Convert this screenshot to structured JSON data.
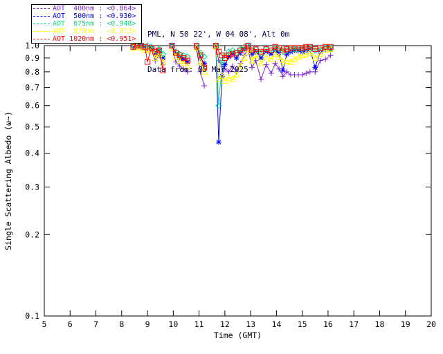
{
  "header": {
    "title_line1": "PML, N 50 22', W 04 08', Alt 0m",
    "title_line2": "Data from: 05 Mar 2025"
  },
  "chart_data": {
    "type": "line",
    "title": "PML, N 50 22', W 04 08', Alt 0m",
    "subtitle": "Data from: 05 Mar 2025",
    "xlabel": "Time (GMT)",
    "ylabel": "Single Scattering Albedo (ω~)",
    "xlim": [
      5,
      20
    ],
    "ylim": [
      0.1,
      1.0
    ],
    "yscale": "log",
    "grid": false,
    "legend_position": "top-left-outside",
    "xticks": [
      5,
      6,
      7,
      8,
      9,
      10,
      11,
      12,
      13,
      14,
      15,
      16,
      17,
      18,
      19,
      20
    ],
    "yticks": [
      0.1,
      0.2,
      0.3,
      0.4,
      0.5,
      0.6,
      0.7,
      0.8,
      0.9,
      1.0
    ],
    "gap_threshold": 0.32,
    "x": [
      8.45,
      8.6,
      8.75,
      8.9,
      9.0,
      9.15,
      9.3,
      9.45,
      9.6,
      9.95,
      10.1,
      10.25,
      10.4,
      10.55,
      10.9,
      11.05,
      11.2,
      11.65,
      11.76,
      11.89,
      12.0,
      12.15,
      12.3,
      12.45,
      12.6,
      12.75,
      12.9,
      13.05,
      13.2,
      13.4,
      13.6,
      13.8,
      13.95,
      14.1,
      14.25,
      14.4,
      14.55,
      14.7,
      14.85,
      15.0,
      15.15,
      15.3,
      15.5,
      15.7,
      15.9,
      16.1
    ],
    "series": [
      {
        "id": "aot-400nm",
        "name": "AOT 400nm",
        "wavelength_nm": 400,
        "mean_ssa": 0.864,
        "legend_label": "AOT  400nm : <0.864>",
        "color": "#7D26CD",
        "marker": "plus",
        "values": [
          0.99,
          1.0,
          0.98,
          0.96,
          0.98,
          0.97,
          0.88,
          0.92,
          0.85,
          0.99,
          0.87,
          0.84,
          0.82,
          0.8,
          0.97,
          0.8,
          0.71,
          0.99,
          0.88,
          0.84,
          0.82,
          0.8,
          0.84,
          0.8,
          0.86,
          0.92,
          0.97,
          0.83,
          0.88,
          0.75,
          0.85,
          0.79,
          0.86,
          0.82,
          0.77,
          0.8,
          0.78,
          0.78,
          0.78,
          0.78,
          0.79,
          0.8,
          0.8,
          0.88,
          0.89,
          0.92
        ]
      },
      {
        "id": "aot-500nm",
        "name": "AOT 500nm",
        "wavelength_nm": 500,
        "mean_ssa": 0.93,
        "legend_label": "AOT  500nm : <0.930>",
        "color": "#0000FF",
        "marker": "asterisk",
        "values": [
          0.99,
          1.0,
          1.0,
          0.98,
          0.99,
          0.98,
          0.93,
          0.96,
          0.9,
          1.0,
          0.93,
          0.9,
          0.89,
          0.87,
          0.99,
          0.9,
          0.86,
          1.0,
          0.44,
          0.77,
          0.85,
          0.91,
          0.93,
          0.9,
          0.94,
          0.97,
          0.99,
          0.93,
          0.95,
          0.9,
          0.95,
          0.93,
          0.96,
          0.94,
          0.81,
          0.93,
          0.95,
          0.96,
          0.96,
          0.95,
          0.96,
          0.97,
          0.83,
          0.95,
          0.97,
          0.97
        ]
      },
      {
        "id": "aot-675nm",
        "name": "AOT 675nm",
        "wavelength_nm": 675,
        "mean_ssa": 0.948,
        "legend_label": "AOT  675nm : <0.948>",
        "color": "#00DC78",
        "marker": "diamond",
        "values": [
          0.99,
          1.0,
          1.0,
          0.99,
          1.0,
          0.99,
          0.96,
          0.97,
          0.93,
          1.0,
          0.95,
          0.93,
          0.92,
          0.91,
          1.0,
          0.94,
          0.91,
          1.0,
          0.6,
          0.88,
          0.92,
          0.95,
          0.96,
          0.94,
          0.97,
          0.99,
          1.0,
          0.96,
          0.97,
          0.94,
          0.97,
          0.96,
          0.98,
          0.97,
          0.95,
          0.96,
          0.97,
          0.97,
          0.97,
          0.97,
          0.98,
          0.98,
          0.96,
          0.97,
          0.98,
          0.98
        ]
      },
      {
        "id": "aot-870nm",
        "name": "AOT 870nm",
        "wavelength_nm": 870,
        "mean_ssa": 0.912,
        "legend_label": "AOT  870nm : <0.912>",
        "color": "#FFFF00",
        "marker": "triangle",
        "values": [
          0.98,
          0.99,
          0.98,
          0.96,
          0.97,
          0.96,
          0.9,
          0.93,
          0.87,
          0.98,
          0.91,
          0.88,
          0.86,
          0.84,
          0.98,
          0.87,
          0.8,
          0.99,
          0.75,
          0.77,
          0.74,
          0.76,
          0.75,
          0.78,
          0.84,
          0.9,
          0.97,
          0.88,
          0.92,
          0.86,
          0.91,
          0.89,
          0.93,
          0.91,
          0.87,
          0.88,
          0.87,
          0.89,
          0.91,
          0.92,
          0.93,
          0.94,
          0.9,
          0.93,
          0.96,
          0.97
        ]
      },
      {
        "id": "aot-1020nm",
        "name": "AOT 1020nm",
        "wavelength_nm": 1020,
        "mean_ssa": 0.951,
        "legend_label": "AOT 1020nm : <0.951>",
        "color": "#FF0000",
        "marker": "square",
        "values": [
          0.99,
          1.0,
          1.0,
          0.99,
          0.87,
          0.98,
          0.95,
          0.96,
          0.81,
          1.0,
          0.94,
          0.92,
          0.9,
          0.88,
          1.0,
          0.92,
          0.83,
          1.0,
          0.95,
          0.92,
          0.9,
          0.92,
          0.93,
          0.94,
          0.96,
          0.98,
          1.0,
          0.96,
          0.97,
          0.95,
          0.97,
          0.96,
          0.99,
          0.98,
          0.96,
          0.97,
          0.98,
          0.98,
          0.98,
          0.98,
          0.99,
          0.99,
          0.97,
          0.98,
          0.99,
          0.99
        ]
      }
    ]
  }
}
